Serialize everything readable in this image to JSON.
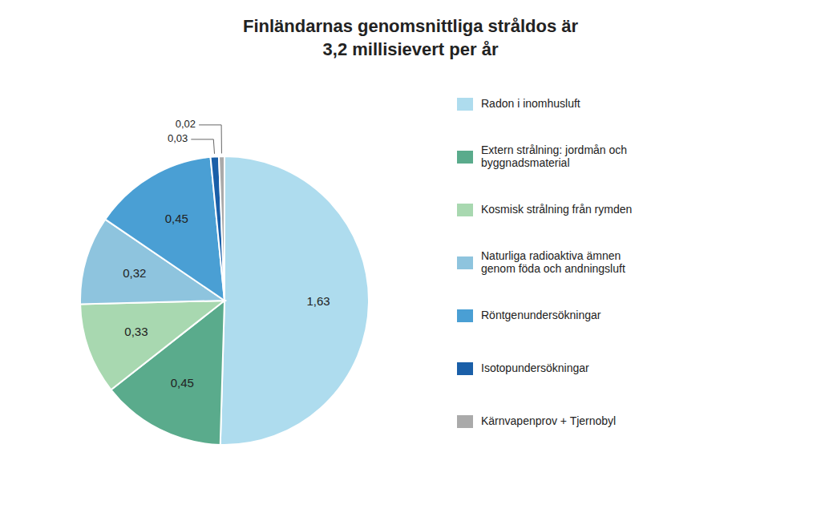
{
  "chart_data": {
    "type": "pie",
    "title": "Finländarnas genomsnittliga stråldos är\n3,2 millisievert per år",
    "categories": [
      "Radon i inomhusluft",
      "Extern strålning: jordmån och\nbyggnadsmaterial",
      "Kosmisk strålning från rymden",
      "Naturliga radioaktiva ämnen\ngenom föda och andningsluft",
      "Röntgenundersökningar",
      "Isotopundersökningar",
      "Kärnvapenprov + Tjernobyl"
    ],
    "values": [
      1.63,
      0.45,
      0.33,
      0.32,
      0.45,
      0.03,
      0.02
    ],
    "value_labels": [
      "1,63",
      "0,45",
      "0,33",
      "0,32",
      "0,45",
      "0,03",
      "0,02"
    ],
    "colors": [
      "#aedcee",
      "#5aab8c",
      "#a8d8b0",
      "#8ec4de",
      "#4a9fd4",
      "#1a5fa8",
      "#aaaaaa"
    ],
    "data_labels": true,
    "legend": "right"
  }
}
